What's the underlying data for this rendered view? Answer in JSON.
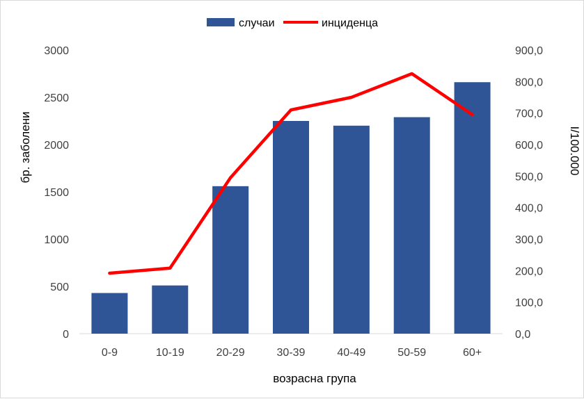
{
  "chart_data": {
    "type": "bar",
    "categories": [
      "0-9",
      "10-19",
      "20-29",
      "30-39",
      "40-49",
      "50-59",
      "60+"
    ],
    "series": [
      {
        "name": "случаи",
        "type": "bar",
        "axis": "left",
        "color": "#2F5597",
        "values": [
          430,
          510,
          1560,
          2250,
          2200,
          2290,
          2660
        ]
      },
      {
        "name": "инциденца",
        "type": "line",
        "axis": "right",
        "color": "#FF0000",
        "values": [
          192.0,
          208.0,
          495.0,
          710.0,
          750.0,
          825.0,
          695.0
        ]
      }
    ],
    "xlabel": "возрасна група",
    "ylabel": "бр. заболени",
    "y2label": "I/100.000",
    "ylim": [
      0,
      3000
    ],
    "y2lim": [
      0,
      900
    ],
    "yticks": [
      "0",
      "500",
      "1000",
      "1500",
      "2000",
      "2500",
      "3000"
    ],
    "y2ticks": [
      "0,0",
      "100,0",
      "200,0",
      "300,0",
      "400,0",
      "500,0",
      "600,0",
      "700,0",
      "800,0",
      "900,0"
    ],
    "grid": false,
    "legend_position": "top-center"
  }
}
